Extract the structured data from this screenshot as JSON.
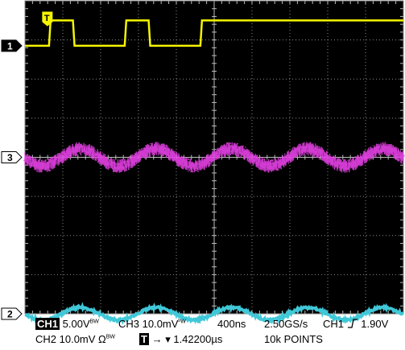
{
  "chart_data": {
    "type": "line",
    "title": "",
    "xlabel": "",
    "ylabel": "",
    "grid": true,
    "x_divisions": 10,
    "y_divisions": 8,
    "x_unit": "ns",
    "x_per_division": 400,
    "xlim": [
      0,
      4000
    ],
    "trigger_marker": "T",
    "series": [
      {
        "channel": "CH1",
        "color": "#f5f500",
        "marker": "1",
        "ground_level_div": 6.85,
        "shape": "square",
        "high_div": 0.65,
        "rising_edges_x": [
          254,
          1054,
          1854
        ],
        "falling_edges_x": [
          507,
          1307
        ],
        "period_ns": 800
      },
      {
        "channel": "CH3",
        "color": "#e040e0",
        "marker": "3",
        "ground_level_div": 4.0,
        "shape": "noisy-sine",
        "amplitude_div": 0.22,
        "noise_div": 0.18,
        "period_ns": 800,
        "peak_x": 588
      },
      {
        "channel": "CH2",
        "color": "#40c8d8",
        "marker": "2",
        "ground_level_div": 0.0,
        "shape": "sine",
        "amplitude_div": 0.16,
        "noise_div": 0.03,
        "period_ns": 800,
        "peak_x": 588
      }
    ]
  },
  "readout": {
    "ch1_label": "CH1",
    "ch1_scale": "5.00V",
    "bw_mark": "B",
    "bw_mark2": "W",
    "ch3_text": "CH3 10.0mV",
    "ch3_bw": "ᵇW",
    "timebase": "400ns",
    "sample_rate": "2.50GS/s",
    "trigger_source": "CH1",
    "trigger_level": "1.90V",
    "ch2_text": "CH2 10.0mV",
    "ch2_bw": "BW",
    "trigger_pos_label": "T",
    "trigger_pos_arrow": "→ ▾",
    "trigger_pos": "1.42200µs",
    "record_length": "10k POINTS"
  }
}
